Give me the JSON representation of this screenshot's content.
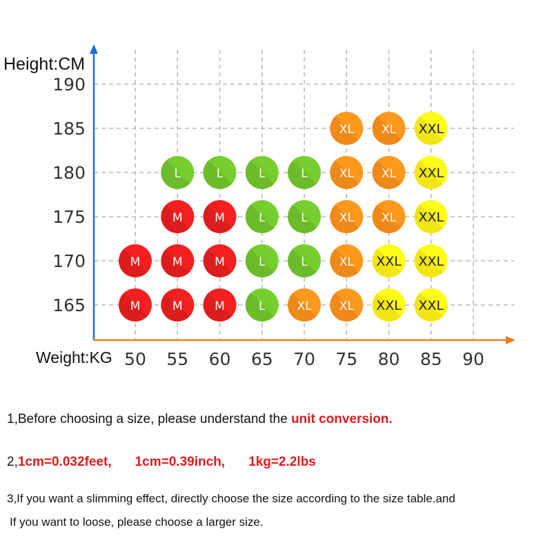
{
  "chart_data": {
    "type": "scatter",
    "ylabel": "Height:CM",
    "xlabel": "Weight:KG",
    "x_ticks": [
      50,
      55,
      60,
      65,
      70,
      75,
      80,
      85,
      90
    ],
    "y_ticks": [
      165,
      170,
      175,
      180,
      185,
      190
    ],
    "xlim": [
      45,
      92
    ],
    "ylim": [
      160,
      192
    ],
    "grid": true,
    "size_colors": {
      "M": "#dd1d1d",
      "L": "#6bbb2a",
      "XL": "#ee8a1a",
      "XXL": "#f2e514"
    },
    "points": [
      {
        "weight": 50,
        "height": 165,
        "size": "M"
      },
      {
        "weight": 55,
        "height": 165,
        "size": "M"
      },
      {
        "weight": 60,
        "height": 165,
        "size": "M"
      },
      {
        "weight": 65,
        "height": 165,
        "size": "L"
      },
      {
        "weight": 70,
        "height": 165,
        "size": "XL"
      },
      {
        "weight": 75,
        "height": 165,
        "size": "XL"
      },
      {
        "weight": 80,
        "height": 165,
        "size": "XXL"
      },
      {
        "weight": 85,
        "height": 165,
        "size": "XXL"
      },
      {
        "weight": 50,
        "height": 170,
        "size": "M"
      },
      {
        "weight": 55,
        "height": 170,
        "size": "M"
      },
      {
        "weight": 60,
        "height": 170,
        "size": "M"
      },
      {
        "weight": 65,
        "height": 170,
        "size": "L"
      },
      {
        "weight": 70,
        "height": 170,
        "size": "L"
      },
      {
        "weight": 75,
        "height": 170,
        "size": "XL"
      },
      {
        "weight": 80,
        "height": 170,
        "size": "XXL"
      },
      {
        "weight": 85,
        "height": 170,
        "size": "XXL"
      },
      {
        "weight": 55,
        "height": 175,
        "size": "M"
      },
      {
        "weight": 60,
        "height": 175,
        "size": "M"
      },
      {
        "weight": 65,
        "height": 175,
        "size": "L"
      },
      {
        "weight": 70,
        "height": 175,
        "size": "L"
      },
      {
        "weight": 75,
        "height": 175,
        "size": "XL"
      },
      {
        "weight": 80,
        "height": 175,
        "size": "XL"
      },
      {
        "weight": 85,
        "height": 175,
        "size": "XXL"
      },
      {
        "weight": 55,
        "height": 180,
        "size": "L"
      },
      {
        "weight": 60,
        "height": 180,
        "size": "L"
      },
      {
        "weight": 65,
        "height": 180,
        "size": "L"
      },
      {
        "weight": 70,
        "height": 180,
        "size": "L"
      },
      {
        "weight": 75,
        "height": 180,
        "size": "XL"
      },
      {
        "weight": 80,
        "height": 180,
        "size": "XL"
      },
      {
        "weight": 85,
        "height": 180,
        "size": "XXL"
      },
      {
        "weight": 75,
        "height": 185,
        "size": "XL"
      },
      {
        "weight": 80,
        "height": 185,
        "size": "XL"
      },
      {
        "weight": 85,
        "height": 185,
        "size": "XXL"
      }
    ]
  },
  "notes": {
    "line1_prefix": "1,Before choosing a size, please understand the ",
    "line1_highlight": "unit conversion.",
    "line2_prefix": "2,",
    "line2_items": [
      "1cm=0.032feet,",
      "1cm=0.39inch,",
      "1kg=2.2lbs"
    ],
    "line3": "3,If you want a slimming effect, directly choose the size according to the size table.and",
    "line4": "If you want to loose, please choose a larger size."
  },
  "colors": {
    "axis_blue": "#1f6fd1",
    "axis_orange": "#f07a1a",
    "highlight_red": "#e31b1b"
  }
}
